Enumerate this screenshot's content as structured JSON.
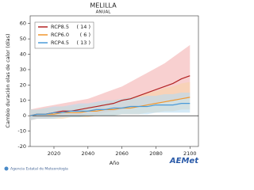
{
  "chart_data": {
    "type": "line",
    "title": "MELILLA",
    "subtitle": "ANUAL",
    "y_label": "Cambio duración olas de calor (días)",
    "x_label": "Año",
    "x": [
      2006,
      2010,
      2015,
      2020,
      2025,
      2030,
      2035,
      2040,
      2045,
      2050,
      2055,
      2060,
      2065,
      2070,
      2075,
      2080,
      2085,
      2090,
      2095,
      2100
    ],
    "series": [
      {
        "name": "RCP8.5",
        "members": "( 14 )",
        "color": "#b22222",
        "band_color": "#f4b0b0",
        "values": [
          0,
          1,
          1,
          2,
          3,
          3,
          4,
          5,
          6,
          7,
          8,
          10,
          11,
          13,
          15,
          17,
          19,
          21,
          24,
          26
        ],
        "low": [
          -3,
          -2,
          -2,
          -1,
          -1,
          0,
          0,
          1,
          1,
          2,
          3,
          4,
          5,
          6,
          7,
          8,
          9,
          10,
          11,
          12
        ],
        "high": [
          4,
          5,
          6,
          7,
          8,
          9,
          10,
          11,
          13,
          15,
          17,
          19,
          22,
          25,
          28,
          31,
          34,
          38,
          42,
          46
        ]
      },
      {
        "name": "RCP6.0",
        "members": "(  6 )",
        "color": "#f0962e",
        "band_color": "#f8d4a8",
        "values": [
          0,
          1,
          1,
          1,
          2,
          2,
          2,
          3,
          3,
          4,
          4,
          5,
          5,
          6,
          7,
          8,
          9,
          10,
          11,
          12
        ],
        "low": [
          -3,
          -2,
          -2,
          -2,
          -2,
          -1,
          -1,
          -1,
          0,
          0,
          0,
          1,
          1,
          1,
          2,
          2,
          3,
          3,
          4,
          4
        ],
        "high": [
          4,
          4,
          5,
          5,
          6,
          6,
          7,
          7,
          8,
          9,
          10,
          11,
          12,
          13,
          15,
          16,
          18,
          19,
          21,
          22
        ]
      },
      {
        "name": "RCP4.5",
        "members": "( 13 )",
        "color": "#4a9ad8",
        "band_color": "#b8dcf2",
        "values": [
          0,
          1,
          1,
          2,
          2,
          3,
          3,
          3,
          4,
          4,
          5,
          5,
          6,
          6,
          6,
          7,
          7,
          7,
          8,
          8
        ],
        "low": [
          -3,
          -2,
          -2,
          -2,
          -1,
          -1,
          -1,
          0,
          0,
          0,
          0,
          1,
          1,
          1,
          1,
          2,
          2,
          2,
          2,
          2
        ],
        "high": [
          4,
          4,
          5,
          6,
          6,
          7,
          8,
          8,
          9,
          10,
          10,
          11,
          12,
          12,
          13,
          13,
          14,
          14,
          15,
          15
        ]
      }
    ],
    "xlim": [
      2006,
      2105
    ],
    "xticks": [
      2020,
      2040,
      2060,
      2080,
      2100
    ],
    "ylim": [
      -20,
      65
    ],
    "yticks": [
      -20,
      -10,
      0,
      10,
      20,
      30,
      40,
      50,
      60
    ],
    "footer": "Agencia Estatal de Meteorología",
    "logo": "AEMet"
  }
}
